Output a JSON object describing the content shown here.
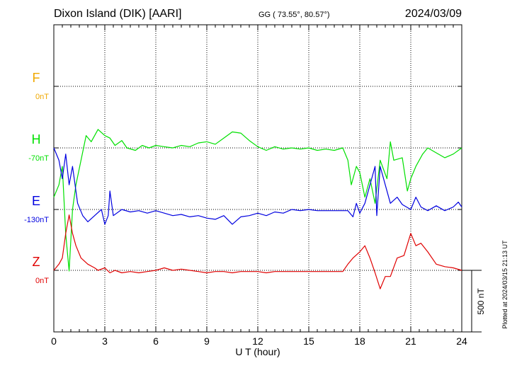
{
  "colors": {
    "F": "#f0a800",
    "H": "#00e000",
    "E": "#0000e0",
    "Z": "#e00000",
    "axis": "#000000"
  },
  "header": {
    "station": "Dixon Island (DIK)  [AARI]",
    "coords": "GG ( 73.55°,  80.57°)",
    "date": "2024/03/09"
  },
  "side_note": "Plotted at 2024/03/15 21:13 UT",
  "chart_data": {
    "type": "line",
    "xlabel": "U T (hour)",
    "xlim": [
      0,
      24
    ],
    "xticks": [
      0,
      3,
      6,
      9,
      12,
      15,
      18,
      21,
      24
    ],
    "grid": true,
    "scale_bar_label": "500 nT",
    "series": [
      {
        "name": "F",
        "baseline_label": "0nT",
        "points": []
      },
      {
        "name": "H",
        "baseline_label": "-70nT",
        "points": [
          [
            0,
            -400
          ],
          [
            0.3,
            -300
          ],
          [
            0.5,
            -150
          ],
          [
            0.7,
            -700
          ],
          [
            0.9,
            -1000
          ],
          [
            1.1,
            -500
          ],
          [
            1.3,
            -300
          ],
          [
            1.6,
            -100
          ],
          [
            1.9,
            100
          ],
          [
            2.2,
            50
          ],
          [
            2.6,
            150
          ],
          [
            3.0,
            100
          ],
          [
            3.3,
            80
          ],
          [
            3.6,
            20
          ],
          [
            4.0,
            60
          ],
          [
            4.3,
            0
          ],
          [
            4.8,
            -20
          ],
          [
            5.2,
            20
          ],
          [
            5.6,
            0
          ],
          [
            6.0,
            20
          ],
          [
            6.5,
            10
          ],
          [
            7.0,
            0
          ],
          [
            7.5,
            20
          ],
          [
            8.0,
            10
          ],
          [
            8.5,
            40
          ],
          [
            9.0,
            50
          ],
          [
            9.5,
            30
          ],
          [
            10.0,
            80
          ],
          [
            10.5,
            130
          ],
          [
            11.0,
            120
          ],
          [
            11.5,
            60
          ],
          [
            12.0,
            10
          ],
          [
            12.5,
            -20
          ],
          [
            13.0,
            10
          ],
          [
            13.5,
            -10
          ],
          [
            14.0,
            0
          ],
          [
            14.5,
            -10
          ],
          [
            15.0,
            0
          ],
          [
            15.5,
            -20
          ],
          [
            16.0,
            -10
          ],
          [
            16.5,
            -20
          ],
          [
            17.0,
            0
          ],
          [
            17.3,
            -100
          ],
          [
            17.5,
            -300
          ],
          [
            17.8,
            -150
          ],
          [
            18.0,
            -200
          ],
          [
            18.3,
            -400
          ],
          [
            18.6,
            -250
          ],
          [
            18.9,
            -450
          ],
          [
            19.2,
            -100
          ],
          [
            19.6,
            -250
          ],
          [
            19.8,
            50
          ],
          [
            20.0,
            -100
          ],
          [
            20.5,
            -80
          ],
          [
            20.8,
            -350
          ],
          [
            21.0,
            -250
          ],
          [
            21.3,
            -150
          ],
          [
            21.7,
            -50
          ],
          [
            22.0,
            0
          ],
          [
            22.5,
            -40
          ],
          [
            23.0,
            -80
          ],
          [
            23.5,
            -50
          ],
          [
            24.0,
            0
          ]
        ]
      },
      {
        "name": "E",
        "baseline_label": "-130nT",
        "points": [
          [
            0,
            500
          ],
          [
            0.3,
            400
          ],
          [
            0.5,
            250
          ],
          [
            0.7,
            450
          ],
          [
            0.9,
            200
          ],
          [
            1.1,
            350
          ],
          [
            1.4,
            50
          ],
          [
            1.7,
            -50
          ],
          [
            2.0,
            -100
          ],
          [
            2.4,
            -50
          ],
          [
            2.8,
            0
          ],
          [
            3.0,
            -120
          ],
          [
            3.2,
            -50
          ],
          [
            3.3,
            150
          ],
          [
            3.5,
            -50
          ],
          [
            4.0,
            0
          ],
          [
            4.5,
            -20
          ],
          [
            5.0,
            -10
          ],
          [
            5.5,
            -30
          ],
          [
            6.0,
            -10
          ],
          [
            6.5,
            -30
          ],
          [
            7.0,
            -50
          ],
          [
            7.5,
            -40
          ],
          [
            8.0,
            -60
          ],
          [
            8.5,
            -50
          ],
          [
            9.0,
            -70
          ],
          [
            9.5,
            -80
          ],
          [
            10.0,
            -50
          ],
          [
            10.5,
            -120
          ],
          [
            11.0,
            -60
          ],
          [
            11.5,
            -50
          ],
          [
            12.0,
            -30
          ],
          [
            12.5,
            -50
          ],
          [
            13.0,
            -20
          ],
          [
            13.5,
            -30
          ],
          [
            14.0,
            0
          ],
          [
            14.5,
            -10
          ],
          [
            15.0,
            0
          ],
          [
            15.5,
            -10
          ],
          [
            16.0,
            -10
          ],
          [
            16.5,
            -10
          ],
          [
            17.0,
            -10
          ],
          [
            17.3,
            -10
          ],
          [
            17.6,
            -60
          ],
          [
            17.8,
            50
          ],
          [
            18.0,
            -30
          ],
          [
            18.3,
            50
          ],
          [
            18.6,
            200
          ],
          [
            18.9,
            350
          ],
          [
            19.0,
            -50
          ],
          [
            19.2,
            350
          ],
          [
            19.5,
            200
          ],
          [
            19.8,
            50
          ],
          [
            20.2,
            100
          ],
          [
            20.5,
            40
          ],
          [
            21.0,
            0
          ],
          [
            21.3,
            100
          ],
          [
            21.6,
            20
          ],
          [
            22.0,
            -10
          ],
          [
            22.5,
            30
          ],
          [
            23.0,
            -10
          ],
          [
            23.5,
            20
          ],
          [
            23.8,
            60
          ],
          [
            24.0,
            20
          ]
        ]
      },
      {
        "name": "Z",
        "baseline_label": "0nT",
        "points": [
          [
            0,
            0
          ],
          [
            0.3,
            50
          ],
          [
            0.5,
            100
          ],
          [
            0.7,
            300
          ],
          [
            0.9,
            450
          ],
          [
            1.1,
            300
          ],
          [
            1.3,
            200
          ],
          [
            1.6,
            100
          ],
          [
            2.0,
            50
          ],
          [
            2.4,
            20
          ],
          [
            2.6,
            0
          ],
          [
            3.0,
            20
          ],
          [
            3.3,
            -20
          ],
          [
            3.6,
            0
          ],
          [
            4.0,
            -20
          ],
          [
            4.5,
            -10
          ],
          [
            5.0,
            -20
          ],
          [
            5.5,
            -10
          ],
          [
            6.0,
            0
          ],
          [
            6.5,
            20
          ],
          [
            7.0,
            0
          ],
          [
            7.5,
            10
          ],
          [
            8.0,
            0
          ],
          [
            8.5,
            -10
          ],
          [
            9.0,
            -20
          ],
          [
            9.5,
            -10
          ],
          [
            10.0,
            -10
          ],
          [
            10.5,
            -20
          ],
          [
            11.0,
            -10
          ],
          [
            11.5,
            -10
          ],
          [
            12.0,
            -10
          ],
          [
            12.5,
            -20
          ],
          [
            13.0,
            -10
          ],
          [
            14.0,
            -10
          ],
          [
            15.0,
            -10
          ],
          [
            16.0,
            -10
          ],
          [
            17.0,
            -10
          ],
          [
            17.3,
            50
          ],
          [
            17.6,
            100
          ],
          [
            18.0,
            150
          ],
          [
            18.3,
            200
          ],
          [
            18.6,
            100
          ],
          [
            18.9,
            -20
          ],
          [
            19.2,
            -150
          ],
          [
            19.5,
            -50
          ],
          [
            19.8,
            -50
          ],
          [
            20.2,
            100
          ],
          [
            20.6,
            120
          ],
          [
            21.0,
            300
          ],
          [
            21.3,
            200
          ],
          [
            21.6,
            220
          ],
          [
            22.0,
            150
          ],
          [
            22.5,
            50
          ],
          [
            23.0,
            30
          ],
          [
            23.5,
            20
          ],
          [
            24.0,
            0
          ]
        ]
      }
    ]
  }
}
